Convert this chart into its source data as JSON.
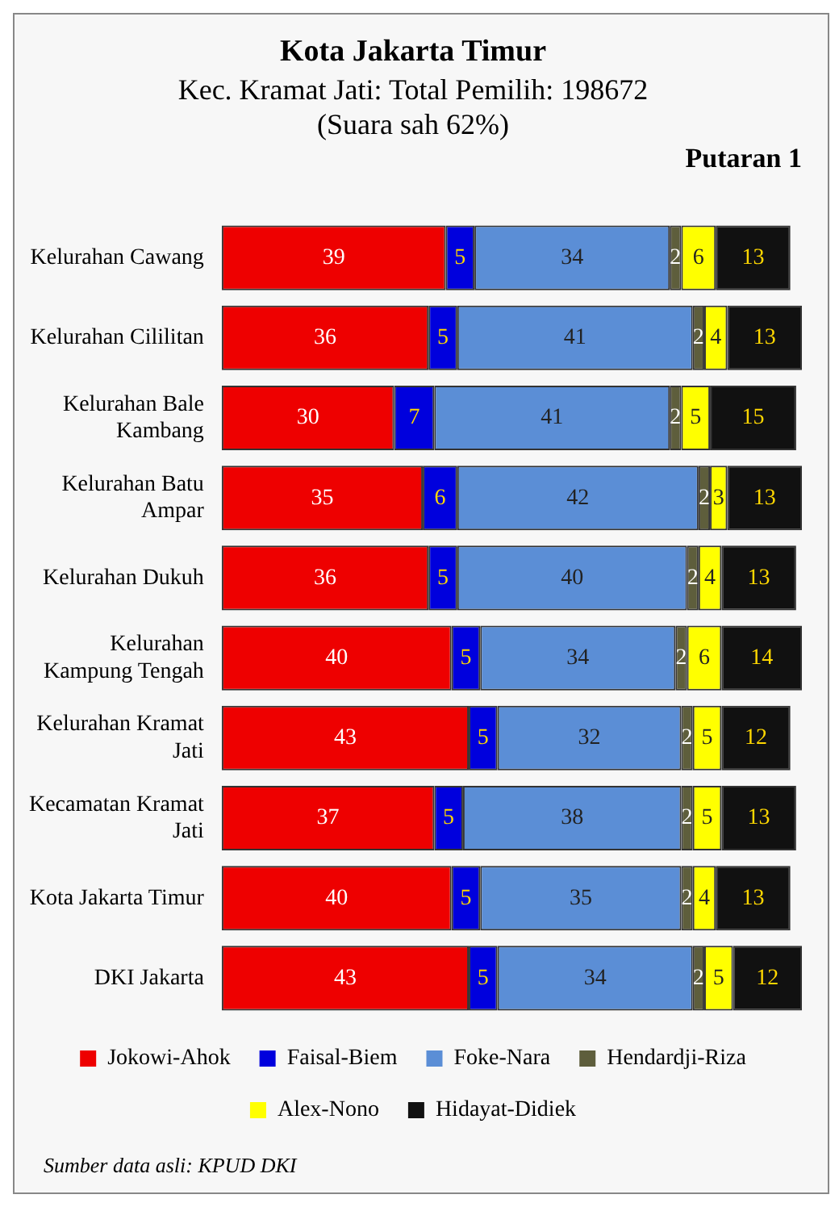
{
  "chart_data": {
    "type": "bar",
    "orientation": "horizontal",
    "stacked": true,
    "data_labels": true,
    "legend": "bottom",
    "grid": false,
    "title": "Kota Jakarta Timur",
    "subtitle": "Kec. Kramat Jati: Total Pemilih: 198672\n(Suara sah 62%)",
    "annotations": [
      "Putaran 1",
      "Sumber data asli: KPUD DKI"
    ],
    "categories": [
      "Kelurahan Cawang",
      "Kelurahan Cililitan",
      "Kelurahan Bale\nKambang",
      "Kelurahan Batu\nAmpar",
      "Kelurahan Dukuh",
      "Kelurahan\nKampung Tengah",
      "Kelurahan Kramat\nJati",
      "Kecamatan Kramat\nJati",
      "Kota Jakarta Timur",
      "DKI Jakarta"
    ],
    "series": [
      {
        "name": "Jokowi-Ahok",
        "color": "#ee0000",
        "values": [
          39,
          36,
          30,
          35,
          36,
          40,
          43,
          37,
          40,
          43
        ]
      },
      {
        "name": "Faisal-Biem",
        "color": "#0000dd",
        "values": [
          5,
          5,
          7,
          6,
          5,
          5,
          5,
          5,
          5,
          5
        ]
      },
      {
        "name": "Foke-Nara",
        "color": "#5b8ed6",
        "values": [
          34,
          41,
          41,
          42,
          40,
          34,
          32,
          38,
          35,
          34
        ]
      },
      {
        "name": "Hendardji-Riza",
        "color": "#5e5e3c",
        "values": [
          2,
          2,
          2,
          2,
          2,
          2,
          2,
          2,
          2,
          2
        ]
      },
      {
        "name": "Alex-Nono",
        "color": "#ffff00",
        "values": [
          6,
          4,
          5,
          3,
          4,
          6,
          5,
          5,
          4,
          5
        ]
      },
      {
        "name": "Hidayat-Didiek",
        "color": "#111111",
        "values": [
          13,
          13,
          15,
          13,
          13,
          14,
          12,
          13,
          13,
          12
        ]
      }
    ]
  }
}
